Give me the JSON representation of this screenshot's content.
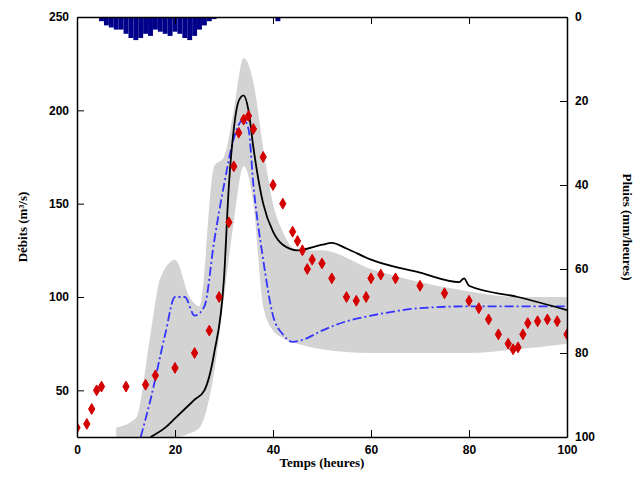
{
  "chart_data": {
    "type": "line",
    "xlabel": "Temps (heures)",
    "ylabel": "Débits (m³/s)",
    "y2label": "Pluies (mm/heures)",
    "xlim": [
      0,
      100
    ],
    "xticks": [
      0,
      20,
      40,
      60,
      80,
      100
    ],
    "ylim": [
      25,
      250
    ],
    "yticks": [
      50,
      100,
      150,
      200,
      250
    ],
    "y2lim": [
      100,
      0
    ],
    "y2ticks": [
      0,
      20,
      40,
      60,
      80,
      100
    ],
    "grid": false,
    "series": [
      {
        "type": "area",
        "color": "#d3d3d3",
        "x": [
          8,
          12,
          15,
          17,
          20,
          23,
          25,
          28,
          30,
          32,
          34,
          36,
          38,
          40,
          42,
          45,
          50,
          60,
          70,
          80,
          90,
          100
        ],
        "lower": [
          25,
          25,
          25,
          25,
          25,
          27,
          30,
          60,
          100,
          140,
          170,
          150,
          95,
          82,
          78,
          75,
          72,
          70,
          70,
          70,
          72,
          75
        ],
        "upper": [
          30,
          35,
          80,
          110,
          120,
          100,
          95,
          170,
          175,
          200,
          228,
          215,
          180,
          150,
          135,
          125,
          125,
          115,
          108,
          103,
          100,
          100
        ]
      },
      {
        "type": "line",
        "color": "#3333ff",
        "line_style": "dashdot",
        "x": [
          13,
          15,
          18,
          20,
          22,
          24,
          26,
          28,
          30,
          32,
          34,
          35,
          36,
          38,
          40,
          42,
          44,
          46,
          50,
          55,
          60,
          70,
          80,
          90,
          100
        ],
        "values": [
          25,
          45,
          80,
          100,
          100,
          90,
          95,
          130,
          160,
          185,
          195,
          190,
          160,
          120,
          90,
          80,
          76,
          77,
          82,
          87,
          90,
          94,
          95,
          95,
          95
        ]
      },
      {
        "type": "line",
        "color": "#000000",
        "line_style": "solid",
        "x": [
          15,
          18,
          20,
          24,
          26,
          28,
          30,
          31,
          32,
          33,
          34,
          35,
          36,
          38,
          40,
          42,
          45,
          50,
          52,
          55,
          60,
          70,
          78,
          79,
          80,
          90,
          100
        ],
        "values": [
          25,
          30,
          35,
          45,
          50,
          70,
          110,
          160,
          190,
          205,
          208,
          200,
          180,
          150,
          135,
          128,
          125,
          128,
          129,
          126,
          120,
          113,
          108,
          110,
          106,
          100,
          93
        ]
      },
      {
        "type": "scatter",
        "color": "#d40000",
        "marker": "diamond",
        "x": [
          0,
          2,
          3,
          4,
          5,
          10,
          14,
          16,
          20,
          24,
          27,
          29,
          31,
          32,
          33,
          34,
          35,
          36,
          38,
          40,
          42,
          44,
          45,
          46,
          47,
          48,
          50,
          52,
          55,
          57,
          59,
          60,
          62,
          65,
          70,
          75,
          80,
          82,
          84,
          86,
          88,
          89,
          90,
          91,
          92,
          94,
          96,
          98,
          100
        ],
        "values": [
          30,
          32,
          40,
          50,
          52,
          52,
          53,
          58,
          62,
          70,
          82,
          100,
          140,
          170,
          188,
          195,
          197,
          190,
          175,
          160,
          150,
          135,
          130,
          125,
          115,
          120,
          118,
          110,
          100,
          98,
          100,
          110,
          112,
          110,
          106,
          102,
          98,
          94,
          88,
          80,
          75,
          72,
          73,
          80,
          86,
          87,
          88,
          87,
          80
        ]
      },
      {
        "type": "bar",
        "axis": "y2",
        "color": "#00008b",
        "x": [
          5,
          6,
          7,
          8,
          9,
          10,
          11,
          12,
          13,
          14,
          15,
          16,
          17,
          18,
          19,
          20,
          21,
          22,
          23,
          24,
          25,
          26,
          27,
          28,
          41
        ],
        "values": [
          1,
          2,
          2.5,
          3,
          3,
          4,
          5,
          5.5,
          5,
          4,
          4.5,
          3,
          3.5,
          4,
          4.5,
          3.5,
          4,
          5,
          5.5,
          4.5,
          3,
          2,
          1,
          0.5,
          1
        ]
      }
    ]
  }
}
